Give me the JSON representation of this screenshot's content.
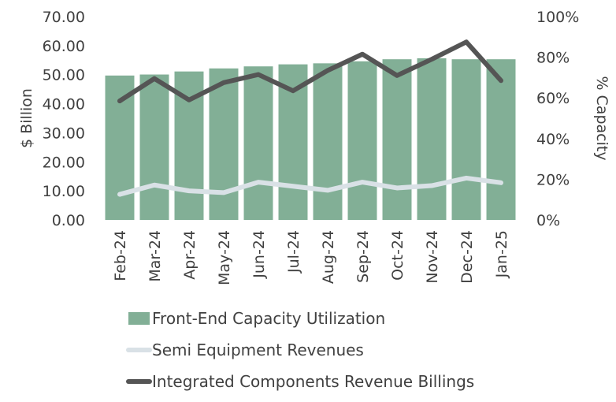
{
  "chart_data": {
    "type": "bar",
    "categories": [
      "Feb-24",
      "Mar-24",
      "Apr-24",
      "May-24",
      "Jun-24",
      "Jul-24",
      "Aug-24",
      "Sep-24",
      "Oct-24",
      "Nov-24",
      "Dec-24",
      "Jan-25"
    ],
    "bar_series": {
      "name": "Front-End Capacity Utilization",
      "color": "#82af96",
      "axis": "right",
      "values": [
        71,
        71.5,
        73,
        74.5,
        75.5,
        76.5,
        77,
        78,
        79,
        79.5,
        79,
        79
      ]
    },
    "line_series": [
      {
        "name": "Semi Equipment Revenues",
        "color": "#d9e1e6",
        "axis": "left",
        "values": [
          8.8,
          12.0,
          10.0,
          9.4,
          13.0,
          11.6,
          10.2,
          13.0,
          11.0,
          11.8,
          14.4,
          12.8
        ]
      },
      {
        "name": "Integrated Components Revenue Billings",
        "color": "#555555",
        "axis": "right",
        "values": [
          58.5,
          69.5,
          59.0,
          67.5,
          71.5,
          63.5,
          73.5,
          81.5,
          71.0,
          79.0,
          87.5,
          68.5
        ]
      }
    ],
    "ylabel_left": "$ Billion",
    "ylabel_right": "% Capacity",
    "yticks_left": [
      "0.00",
      "10.00",
      "20.00",
      "30.00",
      "40.00",
      "50.00",
      "60.00",
      "70.00"
    ],
    "yticks_right": [
      "0%",
      "20%",
      "40%",
      "60%",
      "80%",
      "100%"
    ],
    "ylim_left": [
      0,
      70
    ],
    "ylim_right": [
      0,
      100
    ],
    "legend_position": "bottom",
    "grid": false
  }
}
